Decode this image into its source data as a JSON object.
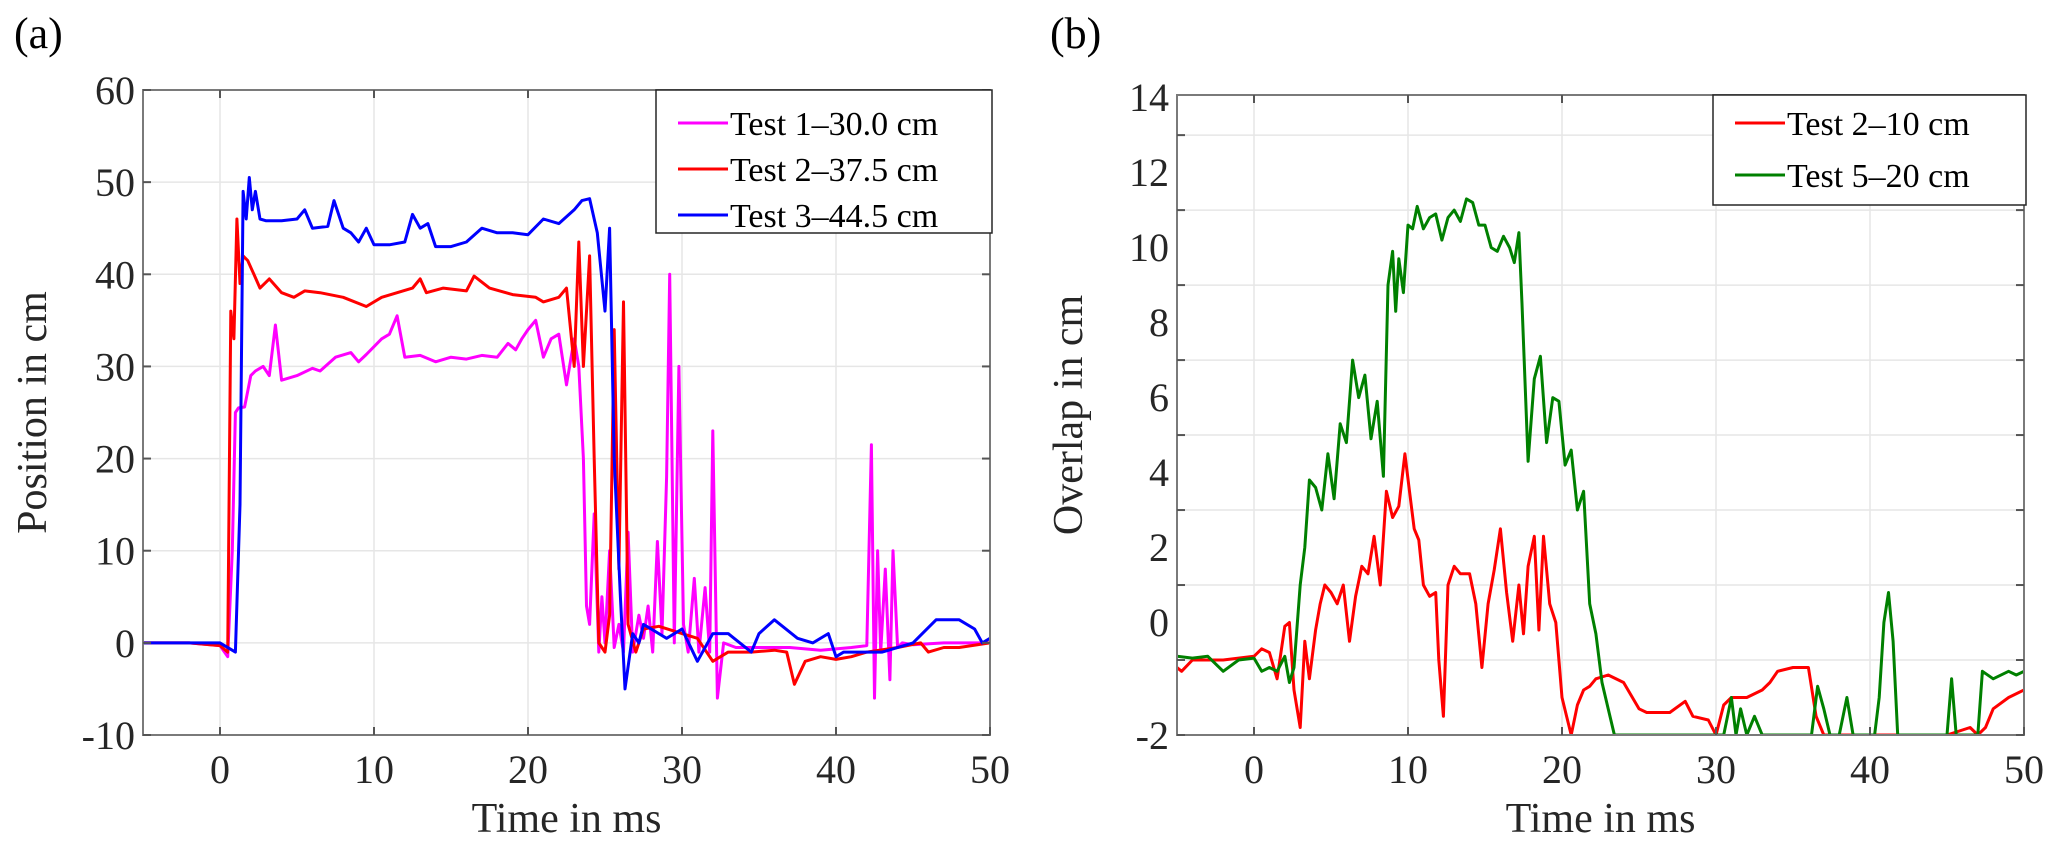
{
  "panels": {
    "a": {
      "label": "(a)"
    },
    "b": {
      "label": "(b)"
    }
  },
  "chart_data": [
    {
      "type": "line",
      "panel": "(a)",
      "title": "",
      "xlabel": "Time in ms",
      "ylabel": "Position in cm",
      "xlim": [
        -5,
        50
      ],
      "ylim": [
        -10,
        60
      ],
      "xticks": [
        0,
        10,
        20,
        30,
        40,
        50
      ],
      "xtick_labels": [
        "0",
        "10",
        "20",
        "30",
        "40",
        "50"
      ],
      "yticks": [
        -10,
        0,
        10,
        20,
        30,
        40,
        50,
        60
      ],
      "ytick_labels": [
        "-10",
        "0",
        "10",
        "20",
        "30",
        "40",
        "50",
        "60"
      ],
      "grid": true,
      "legend_position": "top-right",
      "series": [
        {
          "name": "Test 1–30.0 cm",
          "legend_label": "Test 1–30.0 cm",
          "color": "#ff00ff",
          "x": [
            -5,
            -2,
            0,
            0.5,
            0.8,
            1.0,
            1.2,
            1.6,
            2.0,
            2.3,
            2.8,
            3.2,
            3.6,
            4.0,
            5,
            6,
            6.5,
            7.5,
            8.5,
            9.0,
            9.5,
            10.5,
            11.0,
            11.5,
            12.0,
            13,
            14,
            15,
            16,
            17,
            18,
            18.7,
            19.2,
            19.6,
            20.0,
            20.5,
            21.0,
            21.5,
            22.0,
            22.5,
            23.0,
            23.3,
            23.6,
            23.8,
            24.0,
            24.3,
            24.6,
            24.8,
            25.0,
            25.3,
            25.6,
            25.9,
            26.2,
            26.5,
            26.8,
            27.2,
            27.5,
            27.8,
            28.1,
            28.4,
            28.7,
            29.0,
            29.2,
            29.5,
            29.8,
            30.1,
            30.4,
            30.8,
            31.1,
            31.5,
            31.8,
            32.0,
            32.3,
            32.7,
            33.5,
            35,
            37,
            39,
            41,
            42.0,
            42.3,
            42.5,
            42.7,
            42.9,
            43.2,
            43.5,
            43.7,
            44.0,
            44.3,
            45,
            47,
            50
          ],
          "y": [
            0,
            0,
            -0.3,
            -1.5,
            10,
            25,
            25.5,
            25.6,
            29,
            29.5,
            30,
            29,
            34.5,
            28.5,
            29,
            29.8,
            29.5,
            31,
            31.5,
            30.5,
            31.3,
            33,
            33.5,
            35.5,
            31,
            31.2,
            30.5,
            31,
            30.8,
            31.2,
            31,
            32.5,
            31.8,
            33,
            34,
            35,
            31,
            33,
            33.5,
            28,
            33,
            30,
            20,
            4,
            2,
            14,
            -1,
            5,
            0,
            10,
            -0.5,
            2,
            -1,
            12,
            -1,
            3,
            0.5,
            4,
            -1,
            11,
            1,
            18,
            40,
            0,
            30,
            2,
            -1,
            7,
            -1,
            6,
            -1,
            23,
            -6,
            0,
            -0.5,
            -0.5,
            -0.5,
            -0.8,
            -0.5,
            -0.3,
            21.5,
            -6,
            10,
            -1,
            8,
            -4,
            10,
            -0.5,
            0,
            -0.2,
            0,
            0
          ]
        },
        {
          "name": "Test 2–37.5 cm",
          "legend_label": "Test 2–37.5 cm",
          "color": "#ff0000",
          "x": [
            -5,
            -2,
            0,
            0.5,
            0.7,
            0.9,
            1.1,
            1.3,
            1.5,
            1.8,
            2.2,
            2.6,
            3.2,
            4.0,
            4.8,
            5.5,
            6.5,
            8,
            9.5,
            10.5,
            11.5,
            12.5,
            13.0,
            13.4,
            14.5,
            16,
            16.5,
            17.5,
            19,
            20.5,
            21.0,
            22.0,
            22.5,
            23.0,
            23.3,
            23.6,
            24.0,
            24.3,
            24.6,
            25.0,
            25.3,
            25.6,
            25.9,
            26.2,
            26.5,
            27.0,
            27.5,
            28.5,
            30,
            31,
            32,
            33,
            34.5,
            36,
            36.8,
            37.3,
            38,
            39,
            40,
            41,
            42,
            44,
            45.5,
            46,
            47,
            48,
            50
          ],
          "y": [
            0,
            0,
            -0.3,
            -1,
            36,
            33,
            46,
            39,
            42,
            41.5,
            40,
            38.5,
            39.5,
            38,
            37.5,
            38.2,
            38,
            37.5,
            36.5,
            37.5,
            38,
            38.5,
            39.5,
            38,
            38.5,
            38.2,
            39.8,
            38.5,
            37.8,
            37.5,
            37,
            37.5,
            38.5,
            30,
            43.5,
            30,
            42,
            20,
            0,
            -1,
            3,
            34,
            8,
            37,
            2,
            -1,
            1.5,
            1.8,
            1,
            0.5,
            -2,
            -1,
            -1,
            -0.8,
            -1,
            -4.5,
            -2,
            -1.5,
            -1.8,
            -1.5,
            -1,
            -0.5,
            0,
            -1,
            -0.5,
            -0.5,
            0
          ]
        },
        {
          "name": "Test 3–44.5 cm",
          "legend_label": "Test 3–44.5 cm",
          "color": "#0000ff",
          "x": [
            -5,
            -2,
            0,
            1.0,
            1.3,
            1.5,
            1.7,
            1.9,
            2.1,
            2.3,
            2.6,
            3.0,
            4.0,
            5.0,
            5.5,
            6.0,
            7.0,
            7.4,
            8.0,
            8.5,
            9.0,
            9.5,
            10.0,
            11.0,
            12.0,
            12.5,
            13.0,
            13.5,
            14.0,
            15.0,
            16.0,
            17.0,
            18.0,
            19.0,
            20.0,
            21.0,
            22.0,
            23.0,
            23.5,
            24.0,
            24.5,
            25.0,
            25.3,
            25.6,
            26.0,
            26.3,
            26.8,
            27.2,
            27.5,
            28.0,
            29.0,
            30.0,
            31.0,
            32.0,
            33.0,
            34.5,
            35.0,
            36.0,
            37.5,
            38.5,
            39.5,
            40.0,
            40.5,
            42.0,
            43.0,
            45.0,
            46.5,
            48.0,
            49.0,
            49.5,
            50
          ],
          "y": [
            0,
            0,
            0,
            -1,
            15,
            49,
            46,
            50.5,
            47,
            49,
            46,
            45.8,
            45.8,
            46,
            47,
            45,
            45.2,
            48,
            45,
            44.5,
            43.5,
            45,
            43.2,
            43.2,
            43.5,
            46.5,
            45,
            45.5,
            43,
            43,
            43.5,
            45,
            44.5,
            44.5,
            44.3,
            46,
            45.5,
            47,
            48,
            48.2,
            44.5,
            36,
            45,
            20,
            5,
            -5,
            1,
            0,
            2,
            1.5,
            0.5,
            1.5,
            -2,
            1,
            1,
            -1,
            1,
            2.5,
            0.5,
            0,
            1,
            -1.5,
            -1,
            -1,
            -1,
            0,
            2.5,
            2.5,
            1.5,
            0,
            0.5
          ]
        }
      ]
    },
    {
      "type": "line",
      "panel": "(b)",
      "title": "",
      "xlabel": "Time in ms",
      "ylabel": "Overlap in cm",
      "xlim": [
        -5,
        50
      ],
      "ylim": [
        -2,
        14
      ],
      "xticks": [
        0,
        10,
        20,
        30,
        40,
        50
      ],
      "xtick_labels": [
        "0",
        "10",
        "20",
        "30",
        "40",
        "50"
      ],
      "yticks": [
        -2,
        0,
        2,
        4,
        6,
        8,
        10,
        12,
        14
      ],
      "ytick_labels": [
        "-2",
        "0",
        "2",
        "4",
        "6",
        "8",
        "10",
        "12",
        "14"
      ],
      "grid": true,
      "legend_position": "top-right",
      "series": [
        {
          "name": "Test 2–10 cm",
          "legend_label": "Test 2–10 cm",
          "color": "#ff0000",
          "x": [
            -5,
            -4.7,
            -4,
            -2,
            0,
            0.5,
            1.0,
            1.5,
            2.0,
            2.3,
            2.6,
            3.0,
            3.3,
            3.6,
            4.0,
            4.3,
            4.6,
            5.0,
            5.4,
            5.8,
            6.2,
            6.6,
            7.0,
            7.4,
            7.8,
            8.2,
            8.6,
            9.0,
            9.4,
            9.8,
            10.1,
            10.4,
            10.7,
            11.0,
            11.4,
            11.8,
            12.0,
            12.3,
            12.6,
            13.0,
            13.4,
            14.0,
            14.4,
            14.8,
            15.2,
            15.6,
            16.0,
            16.4,
            16.8,
            17.2,
            17.5,
            17.8,
            18.2,
            18.5,
            18.8,
            19.2,
            19.6,
            20.0,
            20.3,
            20.6,
            21.0,
            21.4,
            21.8,
            22.2,
            23.0,
            24.0,
            25.0,
            25.5,
            27.0,
            28.0,
            28.5,
            29.5,
            30.0,
            30.5,
            31.0,
            32.0,
            33.0,
            33.5,
            34.0,
            35.0,
            36.0,
            36.5,
            37.0,
            38.0,
            45.0,
            46.5,
            47.0,
            47.5,
            48.0,
            49.0,
            50.0
          ],
          "y": [
            -0.2,
            -0.3,
            0,
            0,
            0.1,
            0.3,
            0.2,
            -0.5,
            0.9,
            1.0,
            -0.8,
            -1.8,
            0.5,
            -0.5,
            0.8,
            1.5,
            2.0,
            1.8,
            1.5,
            2.0,
            0.5,
            1.7,
            2.5,
            2.3,
            3.3,
            2.0,
            4.5,
            3.8,
            4.1,
            5.5,
            4.5,
            3.5,
            3.2,
            2.0,
            1.7,
            1.8,
            0,
            -1.5,
            2.0,
            2.5,
            2.3,
            2.3,
            1.5,
            -0.2,
            1.5,
            2.4,
            3.5,
            1.8,
            0.5,
            2.0,
            0.7,
            2.5,
            3.3,
            0.8,
            3.3,
            1.5,
            1.0,
            -1.0,
            -1.5,
            -2.0,
            -1.2,
            -0.8,
            -0.7,
            -0.5,
            -0.4,
            -0.6,
            -1.3,
            -1.4,
            -1.4,
            -1.1,
            -1.5,
            -1.6,
            -2.0,
            -1.2,
            -1.0,
            -1.0,
            -0.8,
            -0.6,
            -0.3,
            -0.2,
            -0.2,
            -1.5,
            -2.0,
            -2.0,
            -2.0,
            -1.8,
            -2.0,
            -1.8,
            -1.3,
            -1.0,
            -0.8
          ]
        },
        {
          "name": "Test 5–20 cm",
          "legend_label": "Test 5–20 cm",
          "color": "#008000",
          "x": [
            -5,
            -4,
            -3,
            -2,
            -1,
            0,
            0.5,
            1.0,
            1.5,
            2.0,
            2.3,
            2.6,
            3.0,
            3.3,
            3.6,
            4.0,
            4.4,
            4.8,
            5.2,
            5.6,
            6.0,
            6.4,
            6.8,
            7.2,
            7.6,
            8.0,
            8.4,
            8.7,
            9.0,
            9.2,
            9.4,
            9.7,
            10.0,
            10.3,
            10.6,
            11.0,
            11.4,
            11.8,
            12.2,
            12.6,
            13.0,
            13.4,
            13.8,
            14.2,
            14.6,
            15.0,
            15.4,
            15.8,
            16.2,
            16.6,
            16.9,
            17.2,
            17.4,
            17.8,
            18.2,
            18.6,
            19.0,
            19.4,
            19.8,
            20.2,
            20.6,
            21.0,
            21.4,
            21.8,
            22.2,
            22.6,
            23.0,
            23.4,
            30.5,
            31.0,
            31.3,
            31.6,
            32.0,
            32.5,
            33.0,
            36.2,
            36.6,
            37.0,
            37.4,
            38.0,
            38.5,
            38.9,
            39.3,
            40.3,
            40.6,
            40.9,
            41.2,
            41.5,
            41.8,
            45.0,
            45.3,
            45.6,
            47.0,
            47.3,
            48.0,
            49.0,
            49.5,
            50.0
          ],
          "y": [
            0.1,
            0.05,
            0.1,
            -0.3,
            0,
            0.05,
            -0.3,
            -0.2,
            -0.3,
            0.1,
            -0.6,
            -0.2,
            2.0,
            3.0,
            4.8,
            4.6,
            4.0,
            5.5,
            4.3,
            6.3,
            5.8,
            8.0,
            7.0,
            7.6,
            5.9,
            6.9,
            4.9,
            10.0,
            10.9,
            9.3,
            10.7,
            9.8,
            11.6,
            11.5,
            12.1,
            11.5,
            11.8,
            11.9,
            11.2,
            11.8,
            12.0,
            11.7,
            12.3,
            12.2,
            11.6,
            11.6,
            11.0,
            10.9,
            11.3,
            11.0,
            10.6,
            11.4,
            9.5,
            5.3,
            7.5,
            8.1,
            5.8,
            7.0,
            6.9,
            5.2,
            5.6,
            4.0,
            4.5,
            1.5,
            0.7,
            -0.6,
            -1.3,
            -2.0,
            -2.0,
            -1.0,
            -2.0,
            -1.3,
            -2.0,
            -1.5,
            -2.0,
            -2.0,
            -0.7,
            -1.3,
            -2.0,
            -2.0,
            -1.0,
            -2.0,
            -2.0,
            -2.0,
            -1.0,
            1.0,
            1.8,
            0.5,
            -2.0,
            -2.0,
            -0.5,
            -2.0,
            -2.0,
            -0.3,
            -0.5,
            -0.3,
            -0.4,
            -0.3
          ]
        }
      ]
    }
  ]
}
